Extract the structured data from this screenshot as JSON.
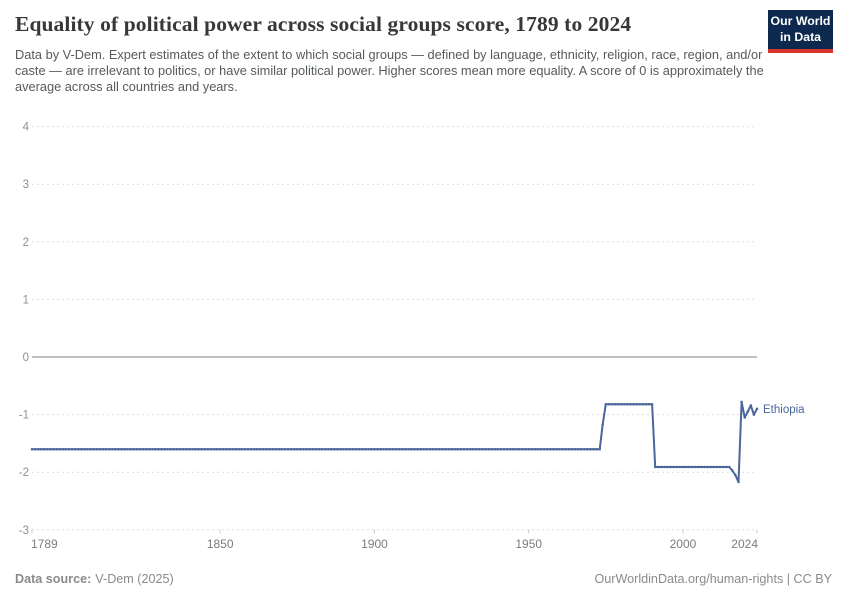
{
  "header": {
    "title": "Equality of political power across social groups score, 1789 to 2024",
    "subtitle": "Data by V-Dem. Expert estimates of the extent to which social groups — defined by language, ethnicity, religion, race, region, and/or caste — are irrelevant to politics, or have similar political power. Higher scores mean more equality. A score of 0 is approximately the average across all countries and years.",
    "logo_line1": "Our World",
    "logo_line2": "in Data",
    "logo_bg_color": "#0d2a4e",
    "logo_accent_color": "#d7342e"
  },
  "chart_data": {
    "type": "line",
    "title": "Equality of political power across social groups score, 1789 to 2024",
    "xlabel": "",
    "ylabel": "",
    "xlim": [
      1789,
      2024
    ],
    "ylim": [
      -3,
      4
    ],
    "grid": "horizontal dashed",
    "zero_line": true,
    "x_ticks": [
      1789,
      1850,
      1900,
      1950,
      2000,
      2024
    ],
    "x_tick_labels": [
      "1789",
      "1850",
      "1900",
      "1950",
      "2000",
      "2024"
    ],
    "y_ticks": [
      4,
      3,
      2,
      1,
      0,
      -1,
      -2,
      -3
    ],
    "y_tick_labels": [
      "4",
      "3",
      "2",
      "1",
      "0",
      "-1",
      "-2",
      "-3"
    ],
    "series": [
      {
        "name": "Ethiopia",
        "color": "#4a669c",
        "end_label": "Ethiopia",
        "segments": [
          {
            "start": 1789,
            "end": 1973,
            "value": -1.6
          },
          {
            "start": 1974,
            "end": 1974,
            "value": -1.17
          },
          {
            "start": 1975,
            "end": 1990,
            "value": -0.82
          },
          {
            "start": 1991,
            "end": 2015,
            "value": -1.91
          },
          {
            "start": 2016,
            "end": 2016,
            "value": -1.97
          },
          {
            "start": 2017,
            "end": 2017,
            "value": -2.05
          },
          {
            "start": 2018,
            "end": 2018,
            "value": -2.17
          },
          {
            "start": 2019,
            "end": 2019,
            "value": -0.78
          },
          {
            "start": 2020,
            "end": 2020,
            "value": -1.05
          },
          {
            "start": 2021,
            "end": 2021,
            "value": -0.95
          },
          {
            "start": 2022,
            "end": 2022,
            "value": -0.84
          },
          {
            "start": 2023,
            "end": 2023,
            "value": -1.0
          },
          {
            "start": 2024,
            "end": 2024,
            "value": -0.9
          }
        ]
      }
    ],
    "colors": {
      "gridline": "#dcdcdc",
      "zero_line": "#9b9b9b",
      "y_label": "#8f8f8f",
      "x_label": "#7c7c7c",
      "tick_mark": "#c9c9c9"
    }
  },
  "footer": {
    "source_label": "Data source:",
    "source_value": "V-Dem (2025)",
    "credit": "OurWorldinData.org/human-rights | CC BY"
  }
}
